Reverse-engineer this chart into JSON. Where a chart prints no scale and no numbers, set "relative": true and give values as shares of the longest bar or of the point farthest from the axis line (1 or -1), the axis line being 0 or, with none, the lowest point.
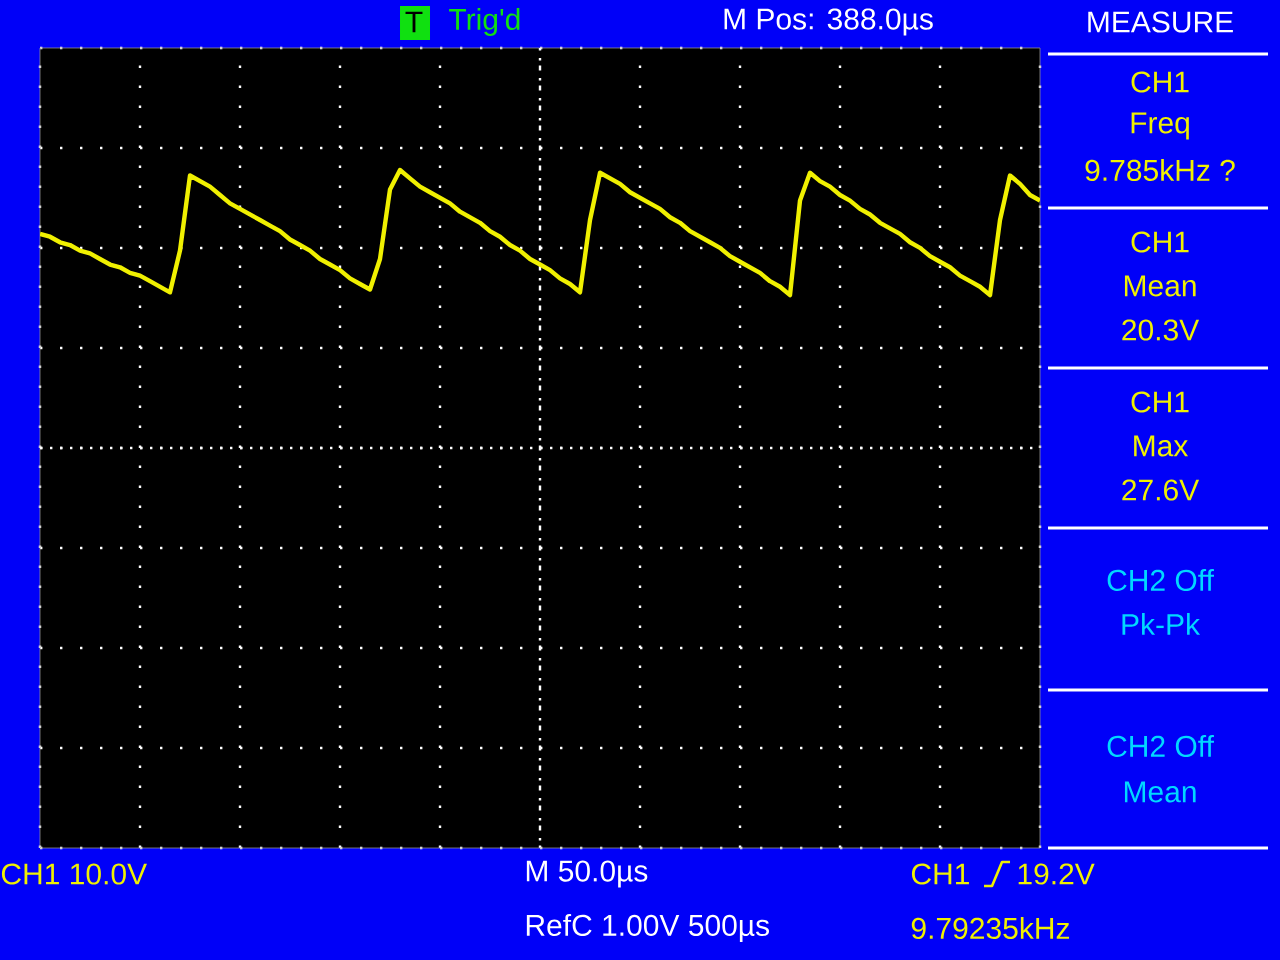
{
  "chart_data": {
    "type": "line",
    "relative": true,
    "grid": true,
    "categories": [
      null,
      null,
      null,
      null,
      null,
      null,
      null,
      null,
      null,
      null,
      null,
      null,
      null,
      null,
      null,
      null,
      null,
      null,
      null,
      null,
      null,
      null,
      null,
      null,
      null,
      null,
      null,
      null,
      null,
      null,
      null,
      null,
      null,
      null,
      null,
      null,
      null,
      null,
      null,
      null,
      null,
      null,
      null,
      null,
      null,
      null,
      null,
      null,
      null,
      null,
      null,
      null,
      null,
      null,
      null,
      null,
      null,
      null,
      null,
      null,
      null,
      null,
      null,
      null,
      null,
      null,
      null,
      null,
      null,
      null,
      null,
      null,
      null,
      null,
      null,
      null,
      null,
      null,
      null,
      null,
      null,
      null,
      null,
      null,
      null,
      null,
      null,
      null,
      null,
      null,
      null,
      null,
      null,
      null,
      null,
      null,
      null,
      null,
      null,
      null,
      null
    ],
    "series": [
      {
        "color": "#f0f000",
        "values": [
          0.77,
          0.76,
          0.74,
          0.73,
          0.71,
          0.7,
          0.68,
          0.66,
          0.65,
          0.63,
          0.62,
          0.6,
          0.58,
          0.56,
          0.71,
          0.98,
          0.96,
          0.94,
          0.91,
          0.88,
          0.86,
          0.84,
          0.82,
          0.8,
          0.78,
          0.75,
          0.73,
          0.71,
          0.68,
          0.66,
          0.64,
          0.61,
          0.59,
          0.57,
          0.68,
          0.93,
          1.0,
          0.97,
          0.94,
          0.92,
          0.9,
          0.88,
          0.85,
          0.83,
          0.81,
          0.78,
          0.76,
          0.73,
          0.71,
          0.68,
          0.66,
          0.64,
          0.61,
          0.59,
          0.56,
          0.82,
          0.99,
          0.97,
          0.95,
          0.92,
          0.9,
          0.88,
          0.86,
          0.83,
          0.81,
          0.78,
          0.76,
          0.74,
          0.72,
          0.69,
          0.67,
          0.65,
          0.63,
          0.6,
          0.58,
          0.55,
          0.89,
          0.99,
          0.96,
          0.94,
          0.91,
          0.89,
          0.86,
          0.84,
          0.81,
          0.79,
          0.77,
          0.74,
          0.72,
          0.69,
          0.67,
          0.65,
          0.62,
          0.6,
          0.58,
          0.55,
          0.82,
          0.98,
          0.95,
          0.91,
          0.89
        ]
      }
    ],
    "annotations": [
      "Trig'd",
      "T",
      "M Pos: 388.0µs",
      "MEASURE",
      "CH1",
      "Freq",
      "9.785kHz ?",
      "CH1",
      "Mean",
      "20.3V",
      "CH1",
      "Max",
      "27.6V",
      "CH2 Off",
      "Pk-Pk",
      "CH2 Off",
      "Mean",
      "CH1 10.0V",
      "M 50.0µs",
      "RefC 1.00V 500µs",
      "CH1",
      "19.2V",
      "9.79235kHz"
    ]
  }
}
